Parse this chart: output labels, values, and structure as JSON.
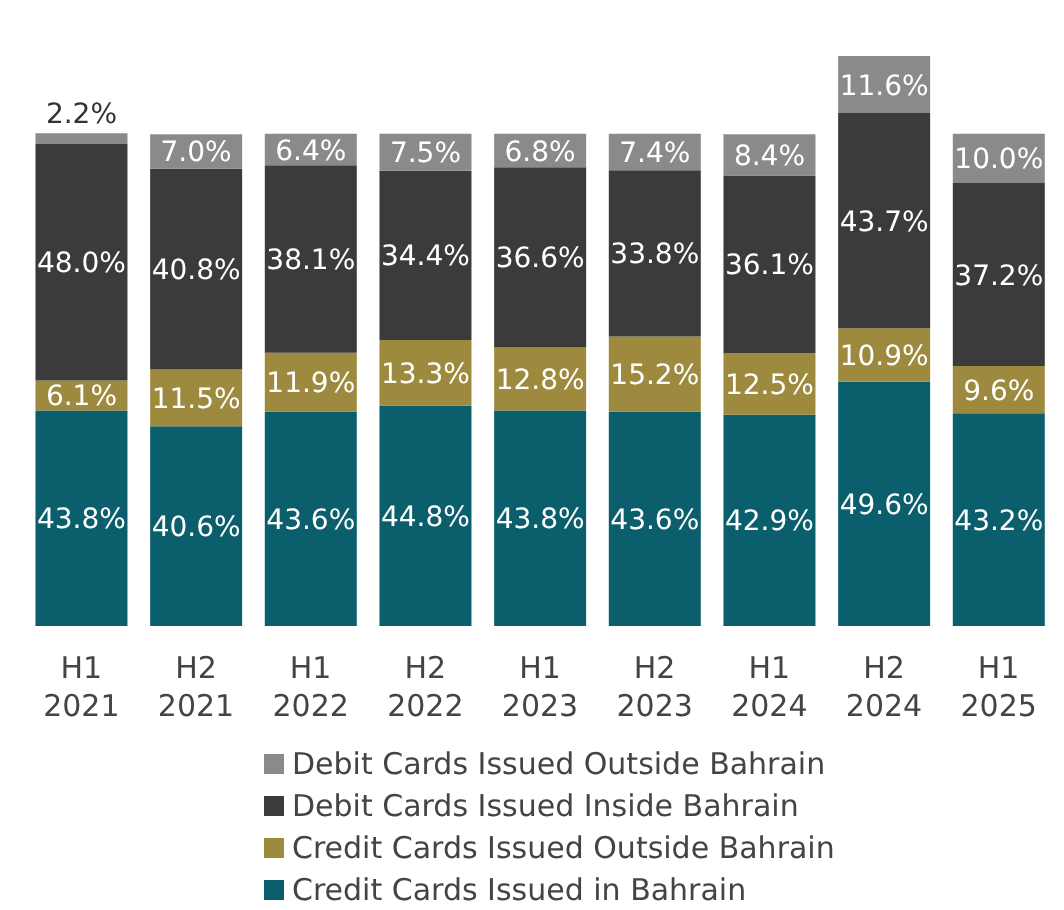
{
  "chart_data": {
    "type": "bar",
    "stacked": true,
    "legend": "bottom",
    "grid": false,
    "categories": [
      "H1 2021",
      "H2 2021",
      "H1 2022",
      "H2 2022",
      "H1 2023",
      "H2 2023",
      "H1 2024",
      "H2 2024",
      "H1 2025"
    ],
    "series": [
      {
        "name": "Credit Cards Issued in Bahrain",
        "color": "#0b5e6b",
        "values": [
          43.8,
          40.6,
          43.6,
          44.8,
          43.8,
          43.6,
          42.9,
          49.6,
          43.2
        ],
        "value_labels": [
          "43.8%",
          "40.6%",
          "43.6%",
          "44.8%",
          "43.8%",
          "43.6%",
          "42.9%",
          "49.6%",
          "43.2%"
        ]
      },
      {
        "name": "Credit Cards Issued Outside Bahrain",
        "color": "#9d8a3e",
        "values": [
          6.1,
          11.5,
          11.9,
          13.3,
          12.8,
          15.2,
          12.5,
          10.9,
          9.6
        ],
        "value_labels": [
          "6.1%",
          "11.5%",
          "11.9%",
          "13.3%",
          "12.8%",
          "15.2%",
          "12.5%",
          "10.9%",
          "9.6%"
        ]
      },
      {
        "name": "Debit Cards Issued Inside Bahrain",
        "color": "#3b3b3b",
        "values": [
          48.0,
          40.8,
          38.1,
          34.4,
          36.6,
          33.8,
          36.1,
          43.7,
          37.2
        ],
        "value_labels": [
          "48.0%",
          "40.8%",
          "38.1%",
          "34.4%",
          "36.6%",
          "33.8%",
          "36.1%",
          "43.7%",
          "37.2%"
        ]
      },
      {
        "name": "Debit Cards Issued Outside Bahrain",
        "color": "#8a8a8a",
        "values": [
          2.2,
          7.0,
          6.4,
          7.5,
          6.8,
          7.4,
          8.4,
          11.6,
          10.0
        ],
        "value_labels": [
          "2.2%",
          "7.0%",
          "6.4%",
          "7.5%",
          "6.8%",
          "7.4%",
          "8.4%",
          "11.6%",
          "10.0%"
        ]
      }
    ]
  }
}
